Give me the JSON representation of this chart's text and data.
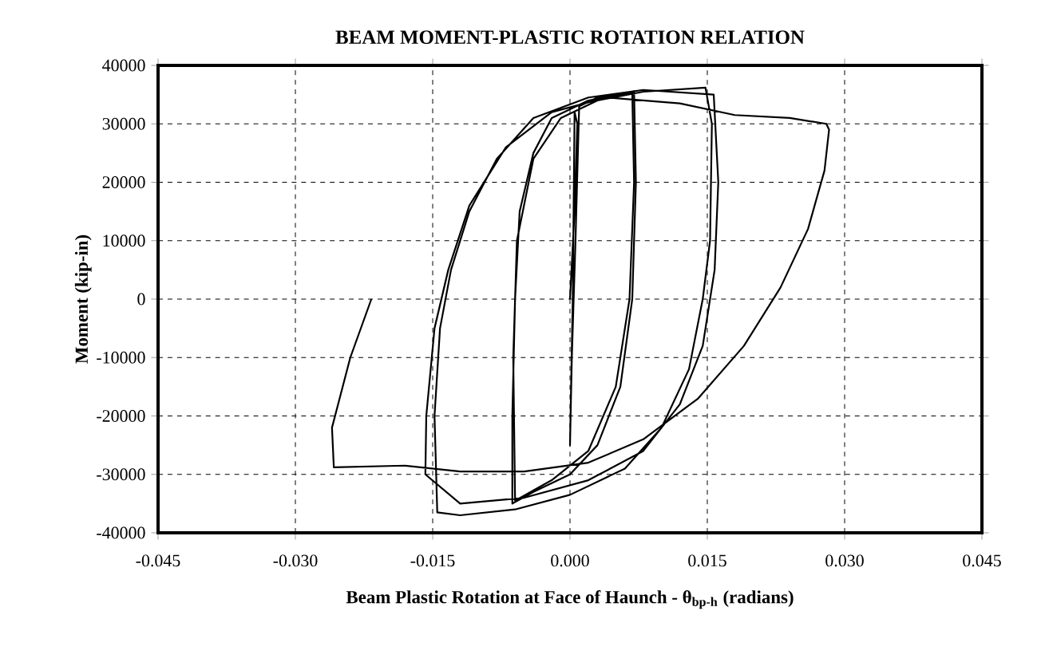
{
  "chart_data": {
    "type": "line",
    "title": "BEAM MOMENT-PLASTIC ROTATION RELATION",
    "xlabel": "Beam Plastic Rotation at Face of Haunch - θ$_{bp-h}$ (radians)",
    "ylabel": "Moment (kip-in)",
    "xlim": [
      -0.045,
      0.045
    ],
    "ylim": [
      -40000,
      40000
    ],
    "xticks": [
      {
        "value": -0.045,
        "label": "-0.045"
      },
      {
        "value": -0.03,
        "label": "-0.030"
      },
      {
        "value": -0.015,
        "label": "-0.015"
      },
      {
        "value": 0,
        "label": "0.000"
      },
      {
        "value": 0.015,
        "label": "0.015"
      },
      {
        "value": 0.03,
        "label": "0.030"
      },
      {
        "value": 0.045,
        "label": "0.045"
      }
    ],
    "yticks": [
      -40000,
      -30000,
      -20000,
      -10000,
      0,
      10000,
      20000,
      30000,
      40000
    ],
    "grid": true,
    "marker": "none",
    "line_style": "solid",
    "series": [
      {
        "color": "#000000",
        "x": [
          0,
          0.0005,
          0.0008,
          0.0005,
          0.0003,
          0.0,
          0.0002,
          0.0006,
          0.001,
          0.003,
          0.007,
          0.0072,
          0.0068,
          0.0055,
          0.003,
          0,
          -0.004,
          -0.0063,
          -0.0063,
          -0.006,
          -0.0055,
          -0.004,
          -0.002,
          0.002,
          0.0068,
          0.007,
          0.0065,
          0.005,
          0.002,
          -0.002,
          -0.006,
          -0.0062,
          -0.0058,
          -0.004,
          -0.001,
          0.003,
          0.008,
          0.0148,
          0.0155,
          0.0153,
          0.0145,
          0.013,
          0.01,
          0.006,
          0.0,
          -0.006,
          -0.012,
          -0.0145,
          -0.0148,
          -0.0142,
          -0.013,
          -0.011,
          -0.008,
          -0.004,
          0.002,
          0.008,
          0.0157,
          0.0162,
          0.0158,
          0.0145,
          0.012,
          0.008,
          0.002,
          -0.005,
          -0.012,
          -0.0158,
          -0.0157,
          -0.0148,
          -0.0133,
          -0.011,
          -0.007,
          -0.002,
          0.004,
          0.012,
          0.018,
          0.024,
          0.028,
          0.0283,
          0.0278,
          0.026,
          0.023,
          0.019,
          0.014,
          0.008,
          0.002,
          -0.005,
          -0.012,
          -0.018,
          -0.0258,
          -0.026,
          -0.024,
          -0.0217
        ],
        "values": [
          0,
          15000,
          30000,
          32000,
          0,
          -25000,
          -10000,
          10000,
          33000,
          34500,
          35600,
          20000,
          0,
          -15000,
          -25000,
          -30000,
          -33000,
          -35000,
          -20000,
          0,
          15000,
          25000,
          31000,
          34000,
          35400,
          20000,
          0,
          -15000,
          -26000,
          -31000,
          -34500,
          -10000,
          10000,
          24000,
          31000,
          34000,
          35500,
          36200,
          30000,
          10000,
          0,
          -12000,
          -22000,
          -29000,
          -33500,
          -36000,
          -37000,
          -36500,
          -20000,
          -5000,
          5000,
          15000,
          24000,
          31000,
          34500,
          35800,
          35000,
          20000,
          5000,
          -8000,
          -18000,
          -26000,
          -31000,
          -34000,
          -35000,
          -30000,
          -20000,
          -5000,
          5000,
          16000,
          26000,
          32000,
          34500,
          33500,
          31500,
          31000,
          30000,
          29000,
          22000,
          12000,
          2000,
          -8000,
          -17000,
          -24000,
          -28000,
          -29500,
          -29500,
          -28500,
          -28800,
          -22000,
          -10000,
          0
        ]
      }
    ]
  }
}
